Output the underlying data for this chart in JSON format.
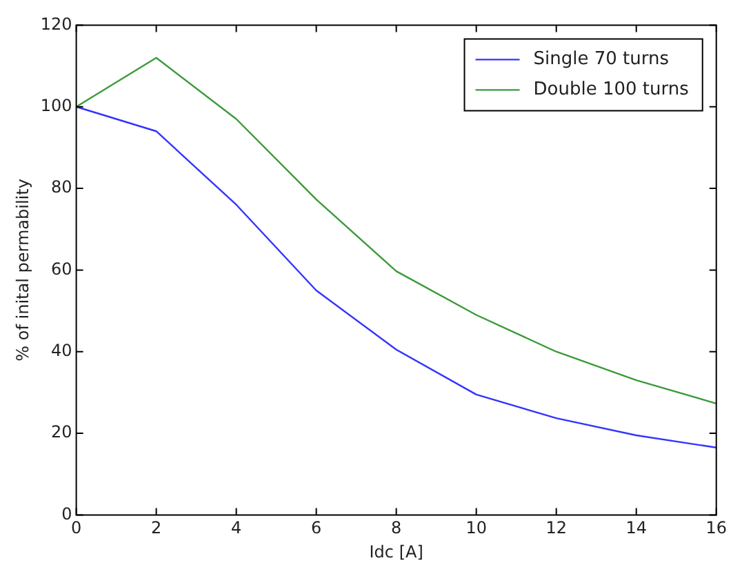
{
  "chart_data": {
    "type": "line",
    "xlabel": "Idc [A]",
    "ylabel": "% of inital permability",
    "x": [
      0,
      2,
      4,
      6,
      8,
      10,
      12,
      14,
      16
    ],
    "series": [
      {
        "name": "Single 70 turns",
        "color": "#3333ff",
        "values": [
          100,
          94,
          76,
          55,
          40.5,
          29.5,
          23.7,
          19.5,
          16.5
        ]
      },
      {
        "name": "Double 100 turns",
        "color": "#3a9a3a",
        "values": [
          100,
          112,
          97,
          77.3,
          59.7,
          49,
          40,
          33,
          27.3
        ]
      }
    ],
    "xlim": [
      0,
      16
    ],
    "xticks": [
      0,
      2,
      4,
      6,
      8,
      10,
      12,
      14,
      16
    ],
    "ylim": [
      0,
      120
    ],
    "yticks": [
      0,
      20,
      40,
      60,
      80,
      100,
      120
    ],
    "grid": false,
    "legend": "top right",
    "marker": "none",
    "line_style": "solid"
  }
}
